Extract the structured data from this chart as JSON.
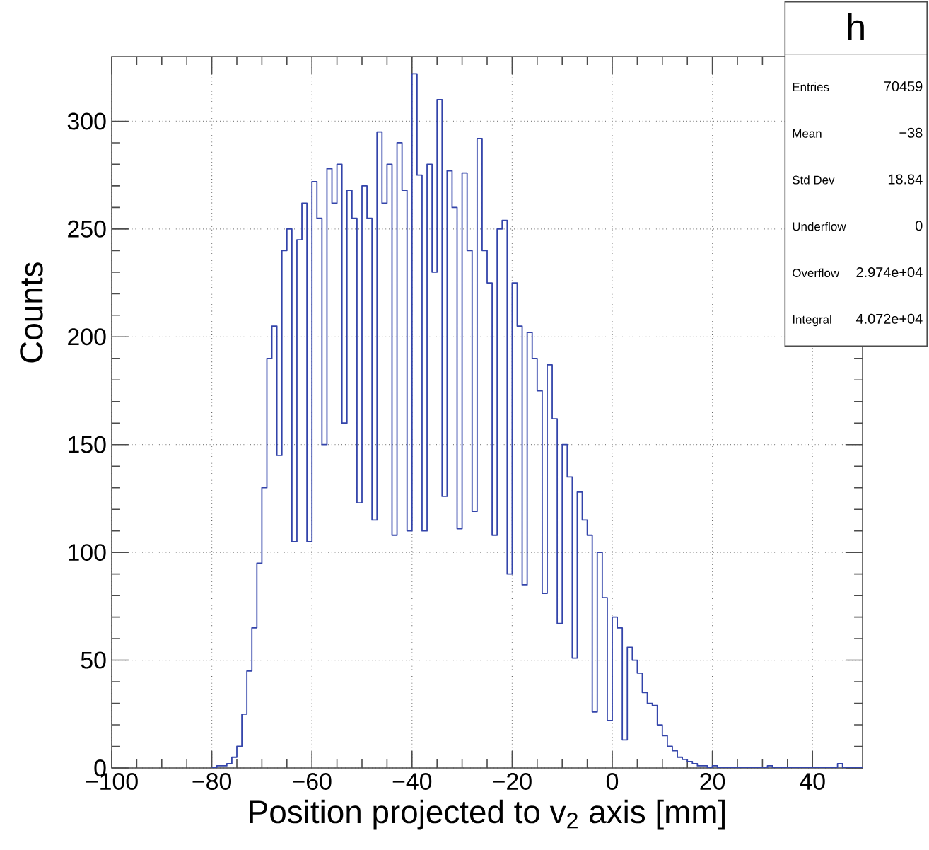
{
  "chart_data": {
    "type": "histogram",
    "xlabel": "Position projected to v$_{2}$ axis [mm]",
    "ylabel": "Counts",
    "color": "#3344aa",
    "bins": [
      -80,
      -79,
      -78,
      -77,
      -76,
      -75,
      -74,
      -73,
      -72,
      -71,
      -70,
      -69,
      -68,
      -67,
      -66,
      -65,
      -64,
      -63,
      -62,
      -61,
      -60,
      -59,
      -58,
      -57,
      -56,
      -55,
      -54,
      -53,
      -52,
      -51,
      -50,
      -49,
      -48,
      -47,
      -46,
      -45,
      -44,
      -43,
      -42,
      -41,
      -40,
      -39,
      -38,
      -37,
      -36,
      -35,
      -34,
      -33,
      -32,
      -31,
      -30,
      -29,
      -28,
      -27,
      -26,
      -25,
      -24,
      -23,
      -22,
      -21,
      -20,
      -19,
      -18,
      -17,
      -16,
      -15,
      -14,
      -13,
      -12,
      -11,
      -10,
      -9,
      -8,
      -7,
      -6,
      -5,
      -4,
      -3,
      -2,
      -1,
      0,
      1,
      2,
      3,
      4,
      5,
      6,
      7,
      8,
      9,
      10,
      11,
      12,
      13,
      14,
      15,
      16,
      17,
      18,
      19,
      20,
      21,
      22,
      23,
      24,
      25,
      26,
      27,
      28,
      29,
      30,
      31,
      32,
      33,
      34,
      35,
      36,
      37,
      38,
      39,
      40,
      41,
      42,
      43,
      44,
      45,
      46,
      47,
      48,
      49,
      50
    ],
    "values": [
      0,
      1,
      1,
      2,
      5,
      10,
      25,
      45,
      65,
      95,
      130,
      190,
      205,
      145,
      240,
      250,
      105,
      245,
      262,
      105,
      272,
      255,
      150,
      278,
      262,
      280,
      160,
      268,
      255,
      123,
      270,
      255,
      115,
      295,
      262,
      280,
      108,
      290,
      268,
      110,
      322,
      275,
      110,
      280,
      230,
      310,
      126,
      277,
      260,
      111,
      276,
      240,
      119,
      292,
      240,
      225,
      108,
      250,
      254,
      90,
      225,
      205,
      85,
      202,
      190,
      175,
      81,
      187,
      162,
      67,
      150,
      135,
      51,
      128,
      115,
      108,
      26,
      100,
      79,
      22,
      70,
      65,
      13,
      56,
      50,
      44,
      35,
      30,
      29,
      20,
      15,
      10,
      8,
      5,
      4,
      3,
      2,
      1,
      1,
      0,
      1,
      0,
      0,
      0,
      0,
      0,
      0,
      0,
      0,
      0,
      0,
      1,
      0,
      0,
      0,
      0,
      0,
      0,
      0,
      0,
      0,
      0,
      0,
      0,
      0,
      2,
      0,
      0,
      0,
      0
    ],
    "xlim": [
      -100,
      50
    ],
    "ylim": [
      0,
      330
    ],
    "xticks": [
      {
        "value": -100,
        "label": "−100"
      },
      {
        "value": -80,
        "label": "−80"
      },
      {
        "value": -60,
        "label": "−60"
      },
      {
        "value": -40,
        "label": "−40"
      },
      {
        "value": -20,
        "label": "−20"
      },
      0,
      20,
      40
    ],
    "yticks": [
      0,
      50,
      100,
      150,
      200,
      250,
      300
    ],
    "grid": true,
    "annotations": [
      "h",
      "Entries",
      "70459",
      "Mean",
      "−38",
      "Std Dev",
      "18.84",
      "Underflow",
      "0",
      "Overflow",
      "2.974e+04",
      "Integral",
      "4.072e+04"
    ]
  }
}
